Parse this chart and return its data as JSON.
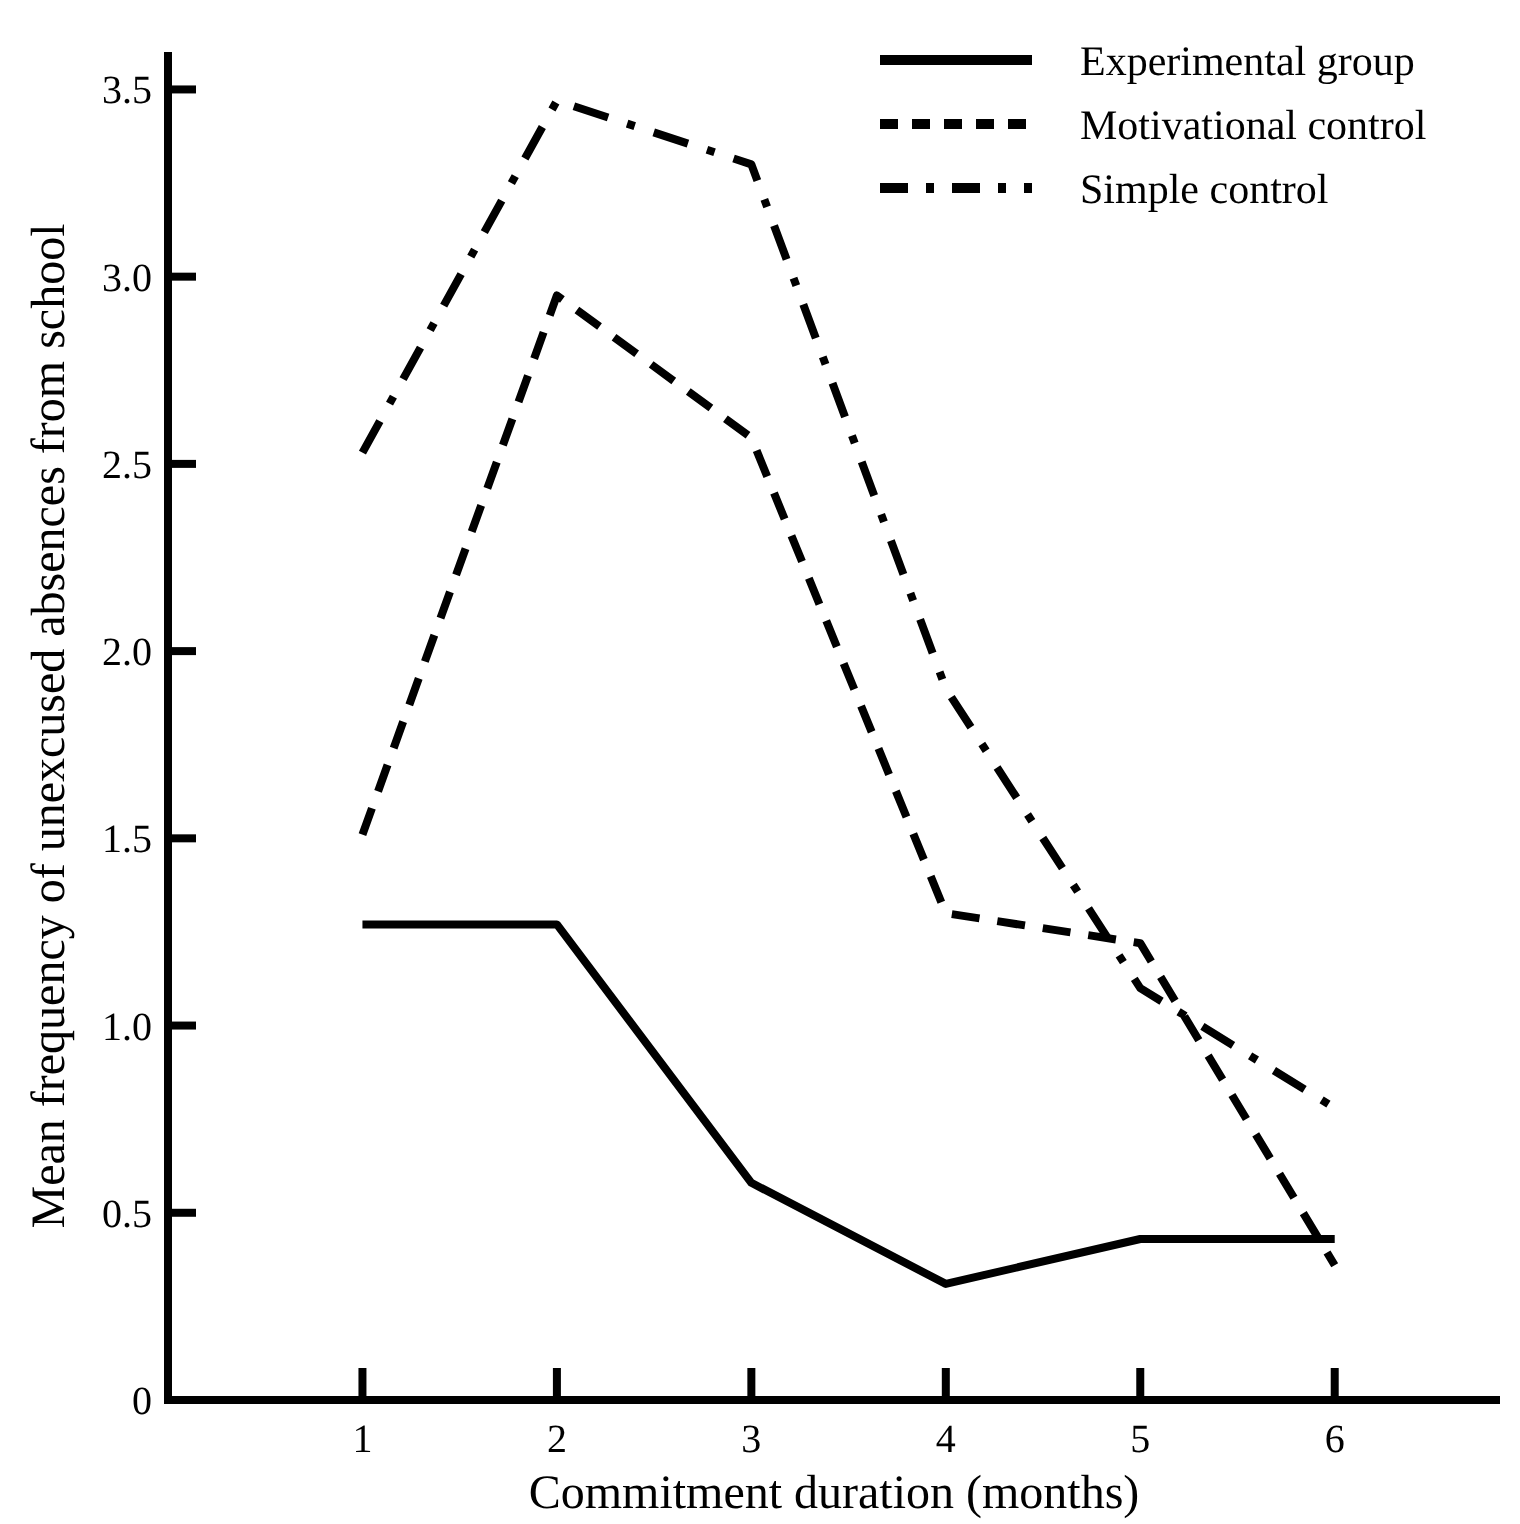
{
  "chart_data": {
    "type": "line",
    "xlabel": "Commitment duration (months)",
    "ylabel": "Mean frequency of unexcused absences from school",
    "x": [
      1,
      2,
      3,
      4,
      5,
      6
    ],
    "series": [
      {
        "name": "Experimental group",
        "color": "#000000",
        "line_style": "solid",
        "values": [
          1.27,
          1.27,
          0.58,
          0.31,
          0.43,
          0.43
        ]
      },
      {
        "name": "Motivational control",
        "color": "#000000",
        "line_style": "dashed",
        "values": [
          1.51,
          2.95,
          2.57,
          1.3,
          1.22,
          0.36
        ]
      },
      {
        "name": "Simple control",
        "color": "#000000",
        "line_style": "dashdot",
        "values": [
          2.53,
          3.47,
          3.3,
          1.9,
          1.1,
          0.78
        ]
      }
    ],
    "xlim": [
      0,
      6.85
    ],
    "xticks": [
      1,
      2,
      3,
      4,
      5,
      6
    ],
    "ylim": [
      0,
      3.6
    ],
    "yticks": [
      0,
      {
        "value": 0.5,
        "label": "0.5"
      },
      {
        "value": 1,
        "label": "1.0"
      },
      {
        "value": 1.5,
        "label": "1.5"
      },
      {
        "value": 2,
        "label": "2.0"
      },
      {
        "value": 2.5,
        "label": "2.5"
      },
      {
        "value": 3,
        "label": "3.0"
      },
      {
        "value": 3.5,
        "label": "3.5"
      }
    ],
    "grid": false,
    "legend": "top right",
    "marker": "none"
  }
}
